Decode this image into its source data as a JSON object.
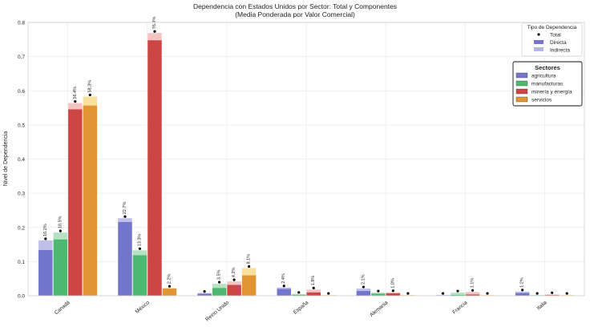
{
  "chart_data": {
    "type": "bar",
    "title": "Dependencia con Estados Unidos por Sector: Total y Componentes",
    "subtitle": "(Media Ponderada por Valor Comercial)",
    "ylabel": "Nivel de Dependencia",
    "xlabel": "",
    "ylim": [
      0,
      0.8
    ],
    "yticks": [
      "0.0",
      "0.1",
      "0.2",
      "0.3",
      "0.4",
      "0.5",
      "0.6",
      "0.7",
      "0.8"
    ],
    "grid": true,
    "categories": [
      "Canadá",
      "México",
      "Reino Unido",
      "España",
      "Alemania",
      "Francia",
      "Italia"
    ],
    "series": [
      {
        "name": "agricultura",
        "color": "#7375cc",
        "light_color": "#b3b5e6",
        "direct": [
          0.134,
          0.216,
          0.006,
          0.02,
          0.014,
          0.001,
          0.008
        ],
        "indirect": [
          0.028,
          0.011,
          0.002,
          0.004,
          0.007,
          0.001,
          0.004
        ],
        "labels": [
          "16.2%",
          "22.7%",
          "",
          "2.4%",
          "2.1%",
          "",
          "1.2%"
        ]
      },
      {
        "name": "manufacturas",
        "color": "#4cb872",
        "light_color": "#a9dcb8",
        "direct": [
          0.165,
          0.119,
          0.023,
          0.003,
          0.006,
          0.003,
          0.001
        ],
        "indirect": [
          0.02,
          0.014,
          0.012,
          0.002,
          0.003,
          0.006,
          0.001
        ],
        "labels": [
          "18.5%",
          "13.3%",
          "3.5%",
          "",
          "",
          "",
          ""
        ]
      },
      {
        "name": "minería y energía",
        "color": "#cc4646",
        "light_color": "#f4b8b8",
        "direct": [
          0.546,
          0.748,
          0.032,
          0.01,
          0.007,
          0.004,
          0.002
        ],
        "indirect": [
          0.018,
          0.021,
          0.01,
          0.008,
          0.003,
          0.007,
          0.002
        ],
        "labels": [
          "56.4%",
          "76.9%",
          "4.2%",
          "1.8%",
          "1.0%",
          "1.1%",
          ""
        ]
      },
      {
        "name": "servicios",
        "color": "#e09434",
        "light_color": "#f7dc8e",
        "direct": [
          0.557,
          0.021,
          0.06,
          0.001,
          0.001,
          0.001,
          0.001
        ],
        "indirect": [
          0.026,
          0.002,
          0.021,
          0.001,
          0.001,
          0.001,
          0.001
        ],
        "labels": [
          "58.3%",
          "2.2%",
          "8.1%",
          "",
          "",
          "",
          ""
        ]
      }
    ],
    "legend_tipo": {
      "title": "Tipo de Dependencia",
      "placement": "top-right",
      "items": [
        "Total",
        "Directa",
        "Indirecta"
      ]
    },
    "legend_sectores": {
      "title": "Sectores",
      "placement": "right",
      "items": [
        "agricultura",
        "manufacturas",
        "minería y energía",
        "servicios"
      ]
    }
  }
}
